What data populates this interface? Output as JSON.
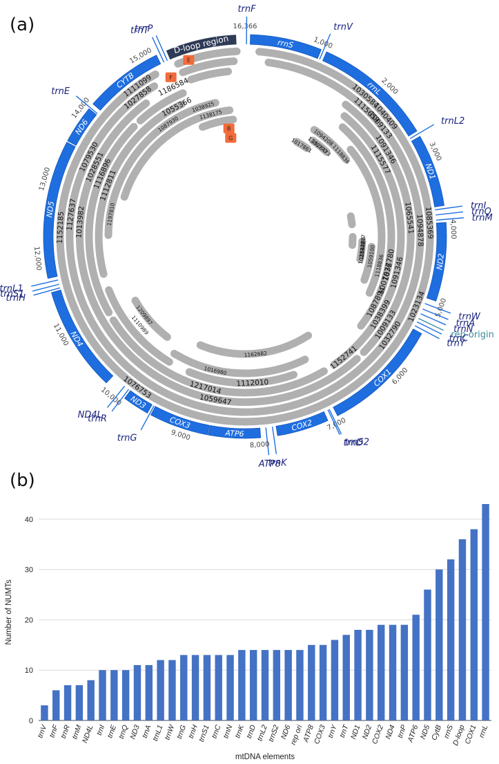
{
  "panel_a": {
    "label": "(a)",
    "genome_length": 16366,
    "dloop_label": "D-loop region",
    "coordinate_labels": [
      {
        "value": 1000,
        "text": "1,000"
      },
      {
        "value": 2000,
        "text": "2,000"
      },
      {
        "value": 3000,
        "text": "3,000"
      },
      {
        "value": 4000,
        "text": "4,000"
      },
      {
        "value": 5000,
        "text": "5,000"
      },
      {
        "value": 6000,
        "text": "6,000"
      },
      {
        "value": 7000,
        "text": "7,000"
      },
      {
        "value": 8000,
        "text": "8,000"
      },
      {
        "value": 9000,
        "text": "9,000"
      },
      {
        "value": 10000,
        "text": "10,000"
      },
      {
        "value": 11000,
        "text": "11,000"
      },
      {
        "value": 12000,
        "text": "12,000"
      },
      {
        "value": 13000,
        "text": "13,000"
      },
      {
        "value": 14000,
        "text": "14,000"
      },
      {
        "value": 15000,
        "text": "15,000"
      },
      {
        "value": 16366,
        "text": "16,366"
      }
    ],
    "genes": [
      {
        "name": "rrnS",
        "start": 70,
        "end": 1010
      },
      {
        "name": "rrnL",
        "start": 1085,
        "end": 2660
      },
      {
        "name": "ND1",
        "start": 2740,
        "end": 3690
      },
      {
        "name": "ND2",
        "start": 3910,
        "end": 4940
      },
      {
        "name": "COX1",
        "start": 5400,
        "end": 6940
      },
      {
        "name": "COX2",
        "start": 7080,
        "end": 7760
      },
      {
        "name": "ATP6",
        "start": 7980,
        "end": 8660
      },
      {
        "name": "COX3",
        "start": 8670,
        "end": 9450
      },
      {
        "name": "ND3",
        "start": 9500,
        "end": 9850
      },
      {
        "name": "ND4",
        "start": 10160,
        "end": 11540
      },
      {
        "name": "ND5",
        "start": 11730,
        "end": 13540
      },
      {
        "name": "ND6",
        "start": 13560,
        "end": 14060
      },
      {
        "name": "CYTB",
        "start": 14140,
        "end": 15180
      }
    ],
    "trna_labels": [
      {
        "name": "trnF",
        "pos": 20
      },
      {
        "name": "trnV",
        "pos": 1040
      },
      {
        "name": "trnL2",
        "pos": 2700
      },
      {
        "name": "trnI",
        "pos": 3730
      },
      {
        "name": "trnQ",
        "pos": 3800
      },
      {
        "name": "trnM",
        "pos": 3870
      },
      {
        "name": "trnW",
        "pos": 5020
      },
      {
        "name": "trnA",
        "pos": 5100
      },
      {
        "name": "trnN",
        "pos": 5170
      },
      {
        "name": "rep origin",
        "pos": 5240
      },
      {
        "name": "trnC",
        "pos": 5290
      },
      {
        "name": "trnY",
        "pos": 5350
      },
      {
        "name": "trnS2",
        "pos": 7000
      },
      {
        "name": "trnD",
        "pos": 7020
      },
      {
        "name": "trnK",
        "pos": 7810
      },
      {
        "name": "ATP8",
        "pos": 7900
      },
      {
        "name": "trnG",
        "pos": 9470
      },
      {
        "name": "trnR",
        "pos": 9880
      },
      {
        "name": "ND4L",
        "pos": 9950
      },
      {
        "name": "trnH",
        "pos": 11570
      },
      {
        "name": "trnS1",
        "pos": 11620
      },
      {
        "name": "trnL1",
        "pos": 11680
      },
      {
        "name": "trnE",
        "pos": 14080
      },
      {
        "name": "trnT",
        "pos": 15230
      },
      {
        "name": "trnP",
        "pos": 15280
      }
    ],
    "numt_ids": [
      {
        "id": "1030584",
        "pos": 1850,
        "track": 1
      },
      {
        "id": "1040409",
        "pos": 2250,
        "track": 1
      },
      {
        "id": "1115659",
        "pos": 2000,
        "track": 2
      },
      {
        "id": "1009133",
        "pos": 2300,
        "track": 2
      },
      {
        "id": "1091346",
        "pos": 2650,
        "track": 3
      },
      {
        "id": "1115577",
        "pos": 2750,
        "track": 4
      },
      {
        "id": "1085369",
        "pos": 3900,
        "track": 1
      },
      {
        "id": "1094878",
        "pos": 4000,
        "track": 2
      },
      {
        "id": "1065541",
        "pos": 3800,
        "track": 3
      },
      {
        "id": "1023134",
        "pos": 5100,
        "track": 1
      },
      {
        "id": "1032790",
        "pos": 5650,
        "track": 2
      },
      {
        "id": "1091346",
        "pos": 4700,
        "track": 4
      },
      {
        "id": "1037780",
        "pos": 4600,
        "track": 5
      },
      {
        "id": "1007876",
        "pos": 4850,
        "track": 5
      },
      {
        "id": "1059100",
        "pos": 4500,
        "track": 7
      },
      {
        "id": "1118836",
        "pos": 4650,
        "track": 6
      },
      {
        "id": "1087894",
        "pos": 5300,
        "track": 5
      },
      {
        "id": "1038399",
        "pos": 5450,
        "track": 4
      },
      {
        "id": "1009133",
        "pos": 5550,
        "track": 3
      },
      {
        "id": "1152741",
        "pos": 6400,
        "track": 4
      },
      {
        "id": "1162682",
        "pos": 7950,
        "track": 8
      },
      {
        "id": "1112010",
        "pos": 8050,
        "track": 5
      },
      {
        "id": "1059647",
        "pos": 8650,
        "track": 3
      },
      {
        "id": "1217014",
        "pos": 8850,
        "track": 4
      },
      {
        "id": "1016980",
        "pos": 8750,
        "track": 6
      },
      {
        "id": "1076753",
        "pos": 9800,
        "track": 1
      },
      {
        "id": "1110989",
        "pos": 10450,
        "track": 6
      },
      {
        "id": "1209897",
        "pos": 10550,
        "track": 7
      },
      {
        "id": "1152185",
        "pos": 12400,
        "track": 1
      },
      {
        "id": "1127637",
        "pos": 12600,
        "track": 2
      },
      {
        "id": "1013982",
        "pos": 12500,
        "track": 3
      },
      {
        "id": "1079530",
        "pos": 13500,
        "track": 2
      },
      {
        "id": "1028551",
        "pos": 13400,
        "track": 3
      },
      {
        "id": "1116896",
        "pos": 13350,
        "track": 4
      },
      {
        "id": "1112811",
        "pos": 13200,
        "track": 5
      },
      {
        "id": "1197810",
        "pos": 12700,
        "track": 6
      },
      {
        "id": "1111099",
        "pos": 14750,
        "track": 1
      },
      {
        "id": "1027858",
        "pos": 14650,
        "track": 2
      },
      {
        "id": "1186584",
        "pos": 15200,
        "track": 3
      },
      {
        "id": "1055366",
        "pos": 15100,
        "track": 5
      },
      {
        "id": "1087930",
        "pos": 14800,
        "track": 6
      },
      {
        "id": "1038925",
        "pos": 15550,
        "track": 6
      },
      {
        "id": "1138175",
        "pos": 15650,
        "track": 7
      },
      {
        "id": "1094208",
        "pos": 1750,
        "track": 7
      },
      {
        "id": "1118836",
        "pos": 2250,
        "track": 7
      },
      {
        "id": "1186773",
        "pos": 1750,
        "track": 8
      },
      {
        "id": "1128473",
        "pos": 1850,
        "track": 8
      },
      {
        "id": "1017861",
        "pos": 1450,
        "track": 9
      },
      {
        "id": "1151596",
        "pos": 4350,
        "track": 8
      },
      {
        "id": "1142217",
        "pos": 4300,
        "track": 8
      },
      {
        "id": "1028148",
        "pos": 4450,
        "track": 8
      }
    ],
    "markers": [
      {
        "letter": "E",
        "pos": 15560,
        "track": 1
      },
      {
        "letter": "F",
        "pos": 15230,
        "track": 2
      },
      {
        "letter": "B",
        "pos": 15980,
        "track": 6
      },
      {
        "letter": "G",
        "pos": 15990,
        "track": 7
      }
    ]
  },
  "panel_b": {
    "label": "(b)",
    "chart_data": {
      "type": "bar",
      "title": "",
      "xlabel": "mtDNA elements",
      "ylabel": "Number of NUMTs",
      "ylim": [
        0,
        43
      ],
      "yticks": [
        0,
        10,
        20,
        30,
        40
      ],
      "grid": true,
      "categories": [
        "trnV",
        "trnF",
        "trnR",
        "trnM",
        "ND4L",
        "trnI",
        "trnE",
        "trnQ",
        "ND3",
        "trnA",
        "trnL1",
        "trnW",
        "trnG",
        "trnH",
        "trnS1",
        "trnC",
        "trnN",
        "trnK",
        "trnD",
        "trnL2",
        "trnS2",
        "ND6",
        "rep ori",
        "ATP8",
        "COX3",
        "trnY",
        "trnT",
        "ND1",
        "ND2",
        "COX2",
        "ND4",
        "trnP",
        "ATP6",
        "ND5",
        "CytB",
        "rrnS",
        "D-loop",
        "COX1",
        "rrnL"
      ],
      "values": [
        3,
        6,
        7,
        7,
        8,
        10,
        10,
        10,
        11,
        11,
        12,
        12,
        13,
        13,
        13,
        13,
        13,
        14,
        14,
        14,
        14,
        14,
        14,
        15,
        15,
        16,
        17,
        18,
        18,
        19,
        19,
        19,
        21,
        26,
        30,
        32,
        36,
        38,
        43
      ],
      "bar_color": "#4472c4"
    }
  }
}
